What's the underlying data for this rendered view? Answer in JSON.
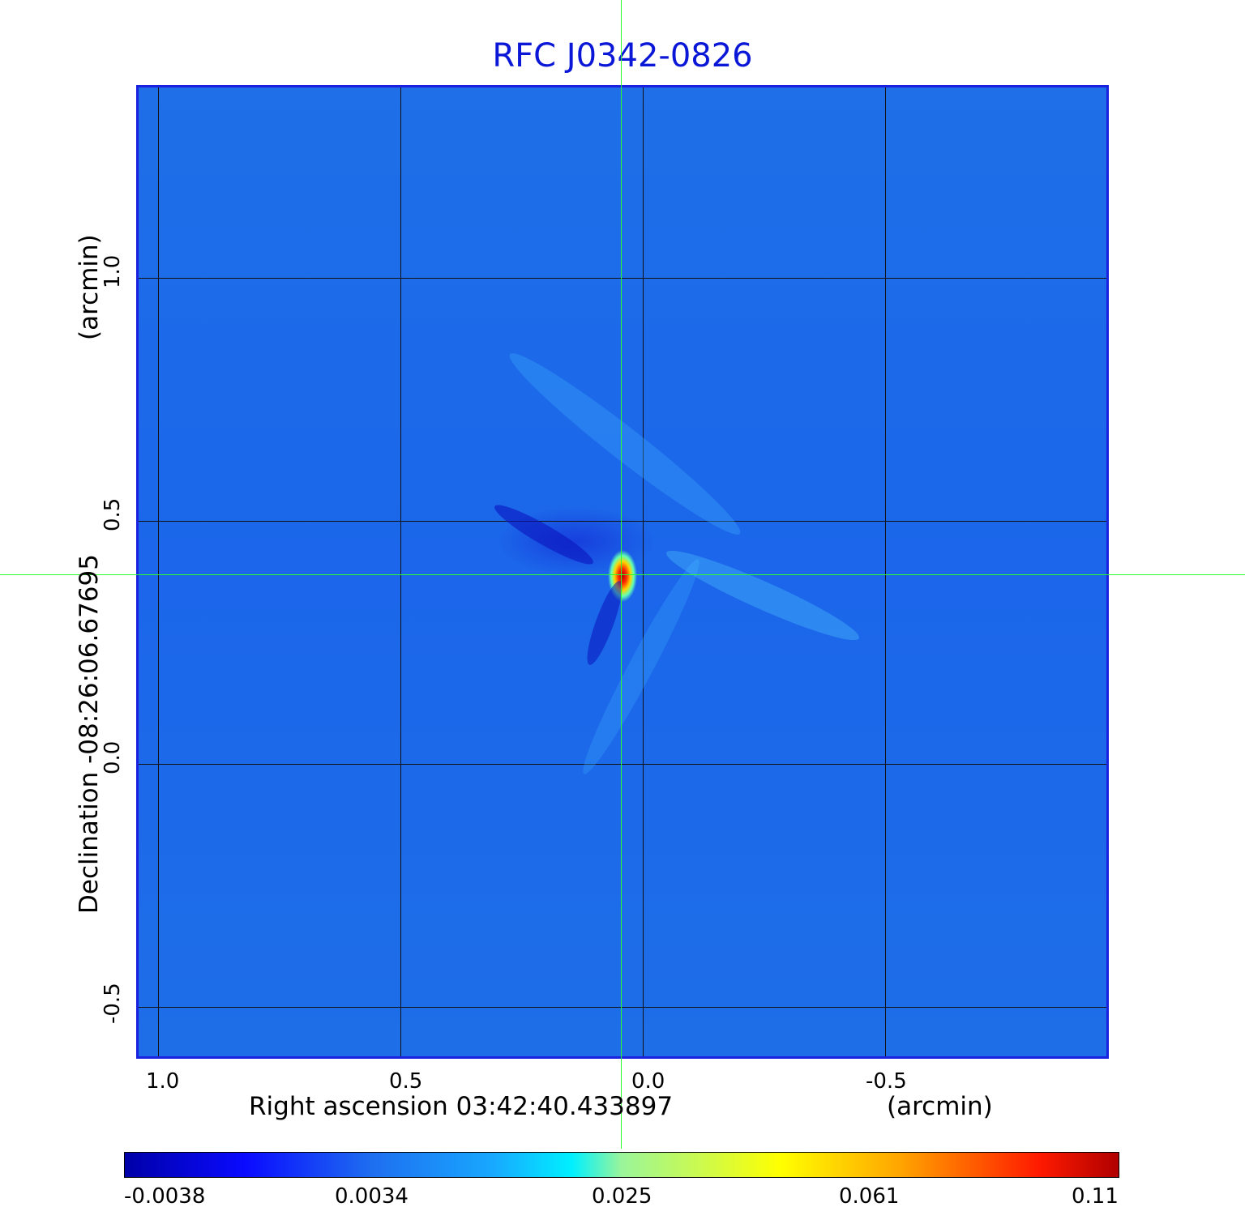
{
  "title": "RFC J0342-0826",
  "x_axis": {
    "label": "Right ascension  03:42:40.433897",
    "unit": "(arcmin)",
    "ticks": [
      "1.0",
      "0.5",
      "0.0",
      "-0.5"
    ]
  },
  "y_axis": {
    "label": "Declination  -08:26:06.67695",
    "unit": "(arcmin)",
    "ticks": [
      "1.0",
      "0.5",
      "0.0",
      "-0.5"
    ]
  },
  "colorbar": {
    "ticks": [
      "-0.0038",
      "0.0034",
      "0.025",
      "0.061",
      "0.11"
    ],
    "colormap": "jet"
  },
  "colors": {
    "title": "#0b17d6",
    "frame": "#1a22e0",
    "crosshair": "#2cff2c",
    "background_map": "#1e6fe8"
  }
}
